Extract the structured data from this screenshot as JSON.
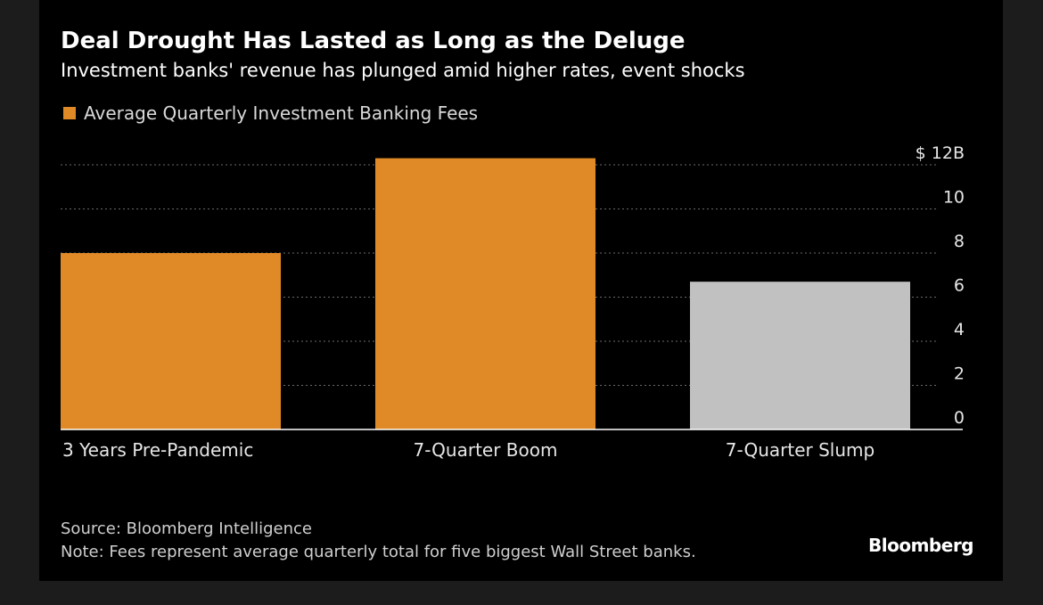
{
  "colors": {
    "boom": "#e08a27",
    "slump": "#c1c1c1",
    "grid": "#6a6a6a",
    "axis_text": "#e6e6e6"
  },
  "header": {
    "title": "Deal Drought Has Lasted as Long as the Deluge",
    "subtitle": "Investment banks' revenue has plunged amid higher rates, event shocks"
  },
  "footer": {
    "source": "Source: Bloomberg Intelligence",
    "note": "Note: Fees represent average quarterly total for five biggest Wall Street banks.",
    "brand": "Bloomberg"
  },
  "chart_data": {
    "type": "bar",
    "title": "Deal Drought Has Lasted as Long as the Deluge",
    "subtitle": "Investment banks' revenue has plunged amid higher rates, event shocks",
    "categories": [
      "3 Years Pre-Pandemic",
      "7-Quarter Boom",
      "7-Quarter Slump"
    ],
    "series": [
      {
        "name": "Average Quarterly Investment Banking Fees",
        "values": [
          8.0,
          12.3,
          6.7
        ]
      }
    ],
    "bar_colors": [
      "#e08a27",
      "#e08a27",
      "#c1c1c1"
    ],
    "ylim": [
      0,
      12
    ],
    "yticks": [
      0,
      2,
      4,
      6,
      8,
      10,
      12
    ],
    "ytick_labels": [
      "0",
      "2",
      "4",
      "6",
      "8",
      "10",
      "$ 12B"
    ],
    "xlabel": "",
    "ylabel": "",
    "grid": true,
    "legend": "top-left"
  }
}
